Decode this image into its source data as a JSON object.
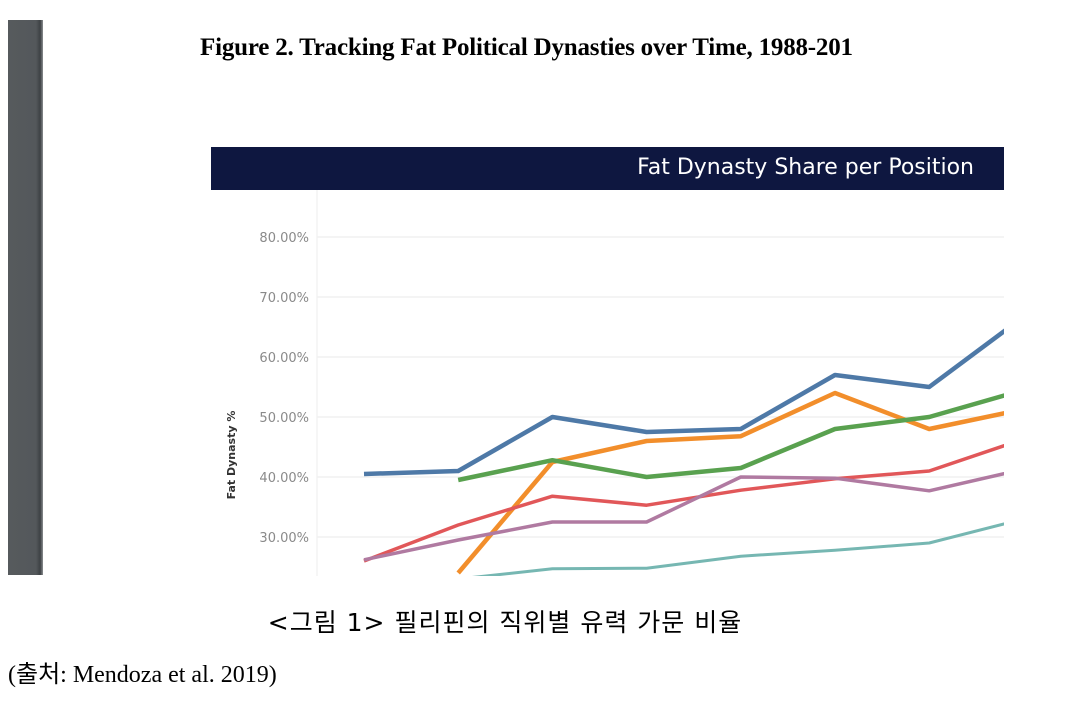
{
  "figure_title": "Figure 2. Tracking Fat Political Dynasties  over Time, 1988-201",
  "caption": "<그림 1> 필리핀의 직위별 유력 가문 비율",
  "source": "(출처: Mendoza et al. 2019)",
  "chart_data": {
    "type": "line",
    "title": "Fat Dynasty Share per Position",
    "xlabel": "",
    "ylabel": "Fat Dynasty %",
    "ylim": [
      22,
      85
    ],
    "yticks": [
      30,
      40,
      50,
      60,
      70,
      80
    ],
    "ytick_labels": [
      "30.00%",
      "40.00%",
      "50.00%",
      "60.00%",
      "70.00%",
      "80.00%"
    ],
    "grid": true,
    "legend": "none visible",
    "x": [
      0,
      1,
      2,
      3,
      4,
      5,
      6,
      7
    ],
    "x_note": "x-axis labels not visible (cropped); points are successive election years, last point cropped at right edge",
    "series": [
      {
        "name": "series-blue",
        "color": "#4e79a7",
        "values": [
          40.5,
          41.0,
          50.0,
          47.5,
          48.0,
          57.0,
          55.0,
          66.7
        ]
      },
      {
        "name": "series-orange",
        "color": "#f28e2b",
        "values": [
          null,
          24.0,
          42.5,
          46.0,
          46.8,
          54.0,
          48.0,
          51.3
        ]
      },
      {
        "name": "series-green",
        "color": "#59a14f",
        "values": [
          null,
          39.5,
          42.8,
          40.0,
          41.5,
          48.0,
          50.0,
          54.5
        ]
      },
      {
        "name": "series-red",
        "color": "#e15759",
        "values": [
          26.0,
          32.0,
          36.8,
          35.3,
          37.8,
          39.7,
          41.0,
          46.3
        ]
      },
      {
        "name": "series-purple",
        "color": "#b07aa1",
        "values": [
          26.2,
          29.5,
          32.5,
          32.5,
          40.0,
          39.8,
          37.7,
          41.3
        ]
      },
      {
        "name": "series-teal",
        "color": "#76b7b2",
        "values": [
          null,
          23.0,
          24.7,
          24.8,
          26.8,
          27.8,
          29.0,
          33.0
        ]
      }
    ]
  }
}
